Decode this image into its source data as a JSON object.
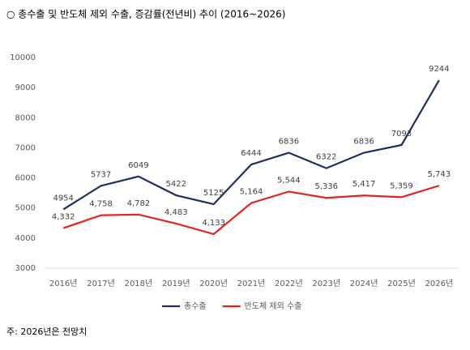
{
  "chart_data": {
    "type": "line",
    "title": "○ 총수출 및 반도체 제외 수출, 증감률(전년비) 추이 (2016~2026)",
    "categories": [
      "2016년",
      "2017년",
      "2018년",
      "2019년",
      "2020년",
      "2021년",
      "2022년",
      "2023년",
      "2024년",
      "2025년",
      "2026년"
    ],
    "series": [
      {
        "name": "총수출",
        "color": "#1f2f5e",
        "values": [
          4954,
          5737,
          6049,
          5422,
          5125,
          6444,
          6836,
          6322,
          6836,
          7093,
          9244
        ]
      },
      {
        "name": "반도체 제외 수출",
        "color": "#e8231f",
        "values": [
          4332,
          4758,
          4782,
          4483,
          4133,
          5164,
          5544,
          5336,
          5417,
          5359,
          5743
        ],
        "value_labels": [
          "4,332",
          "4,758",
          "4,782",
          "4,483",
          "4,133",
          "5,164",
          "5,544",
          "5,336",
          "5,417",
          "5,359",
          "5,743"
        ]
      }
    ],
    "ylim": [
      3000,
      10000
    ],
    "yticks": [
      3000,
      4000,
      5000,
      6000,
      7000,
      8000,
      9000,
      10000
    ],
    "grid": false,
    "legend": "bottom",
    "note": "주: 2026년은 전망치"
  }
}
